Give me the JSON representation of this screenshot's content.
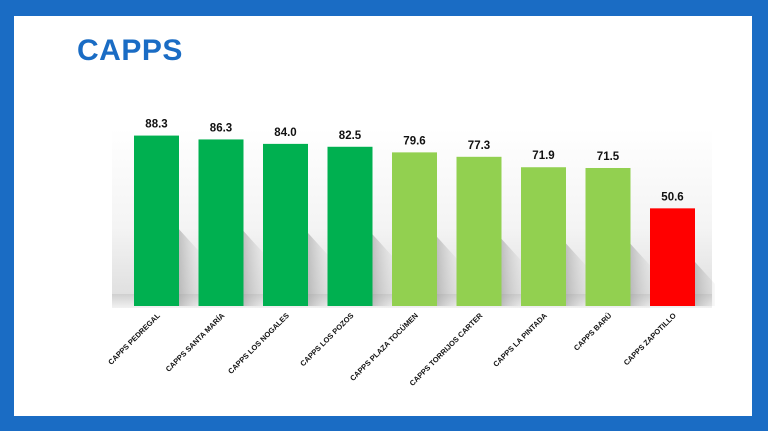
{
  "slide": {
    "title": "CAPPS"
  },
  "colors": {
    "frame": "#1a6cc4",
    "title": "#1a6cc4",
    "dark_green": "#00b050",
    "light_green": "#92d050",
    "red": "#ff0000"
  },
  "chart_data": {
    "type": "bar",
    "title": "",
    "xlabel": "",
    "ylabel": "",
    "ylim": [
      0,
      100
    ],
    "grid": false,
    "legend": "none",
    "categories": [
      "CAPPS PEDREGAL",
      "CAPPS SANTA MARÍA",
      "CAPPS LOS NOGALES",
      "CAPPS LOS POZOS",
      "CAPPS PLAZA TOCÚMEN",
      "CAPPS TORRIJOS CARTER",
      "CAPPS LA PINTADA",
      "CAPPS BARÚ",
      "CAPPS ZAPOTILLO"
    ],
    "values": [
      88.3,
      86.3,
      84.0,
      82.5,
      79.6,
      77.3,
      71.9,
      71.5,
      50.6
    ],
    "labels": [
      "88.3",
      "86.3",
      "84.0",
      "82.5",
      "79.6",
      "77.3",
      "71.9",
      "71.5",
      "50.6"
    ],
    "bar_colors": [
      "#00b050",
      "#00b050",
      "#00b050",
      "#00b050",
      "#92d050",
      "#92d050",
      "#92d050",
      "#92d050",
      "#ff0000"
    ]
  }
}
